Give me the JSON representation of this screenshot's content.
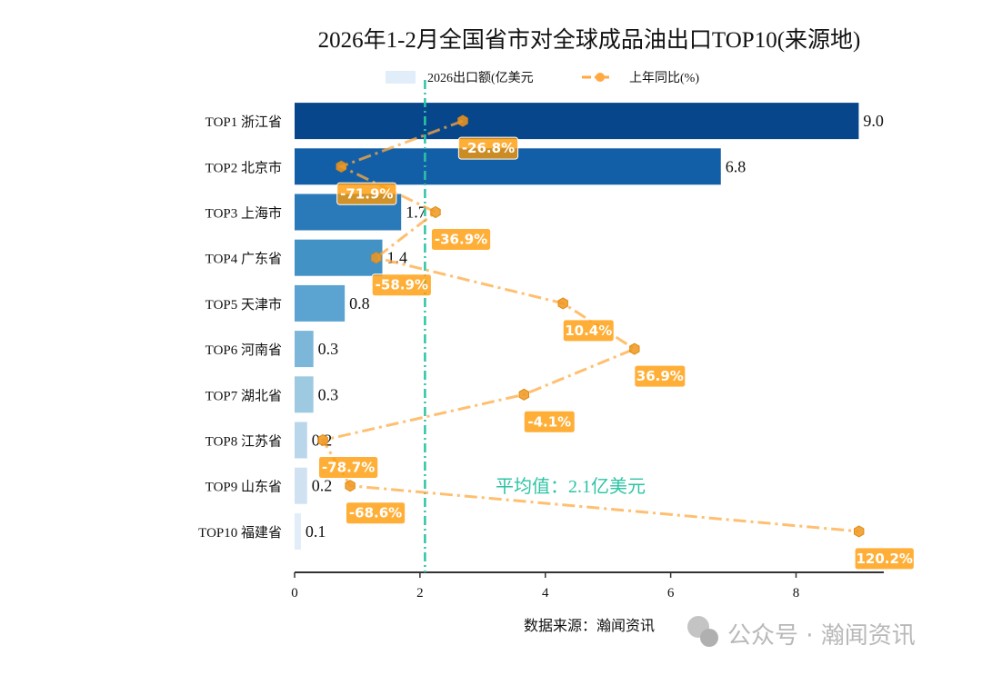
{
  "chart_data": {
    "type": "bar",
    "orientation": "horizontal",
    "title": "2026年1-2月全国省市对全球成品油出口TOP10(来源地)",
    "categories": [
      "TOP1 浙江省",
      "TOP2 北京市",
      "TOP3 上海市",
      "TOP4 广东省",
      "TOP5 天津市",
      "TOP6 河南省",
      "TOP7 湖北省",
      "TOP8 江苏省",
      "TOP9 山东省",
      "TOP10 福建省"
    ],
    "series": [
      {
        "name": "2026出口额(亿美元",
        "type": "bar",
        "values": [
          9.0,
          6.8,
          1.7,
          1.4,
          0.8,
          0.3,
          0.3,
          0.2,
          0.2,
          0.1
        ],
        "value_labels": [
          "9.0",
          "6.8",
          "1.7",
          "1.4",
          "0.8",
          "0.3",
          "0.3",
          "0.2",
          "0.2",
          "0.1"
        ]
      },
      {
        "name": "上年同比(%)",
        "type": "line",
        "style": "dash-dot",
        "marker": "hexagon",
        "values": [
          -26.8,
          -71.9,
          -36.9,
          -58.9,
          10.4,
          36.9,
          -4.1,
          -78.7,
          -68.6,
          120.2
        ],
        "value_labels": [
          "-26.8%",
          "-71.9%",
          "-36.9%",
          "-58.9%",
          "10.4%",
          "36.9%",
          "-4.1%",
          "-78.7%",
          "-68.6%",
          "120.2%"
        ]
      }
    ],
    "xlim": [
      0,
      9.4
    ],
    "secondary_xlim": [
      -89.2,
      129.4
    ],
    "xticks": [
      "0",
      "2",
      "4",
      "6",
      "8"
    ],
    "mean_line": {
      "value": 2.08,
      "label": "平均值：2.1亿美元"
    },
    "grid": false,
    "legend": "top-center",
    "colors": {
      "bars": [
        "#08468b",
        "#135fa7",
        "#2a7ab9",
        "#4292c6",
        "#5ba3d0",
        "#7cb7da",
        "#9ecae1",
        "#bad6eb",
        "#d0e2f2",
        "#e1edf8"
      ],
      "line": "#ffa940",
      "mean": "#2ec4a5"
    }
  },
  "source": "数据来源：瀚闻资讯",
  "watermark": "公众号 · 瀚闻资讯"
}
